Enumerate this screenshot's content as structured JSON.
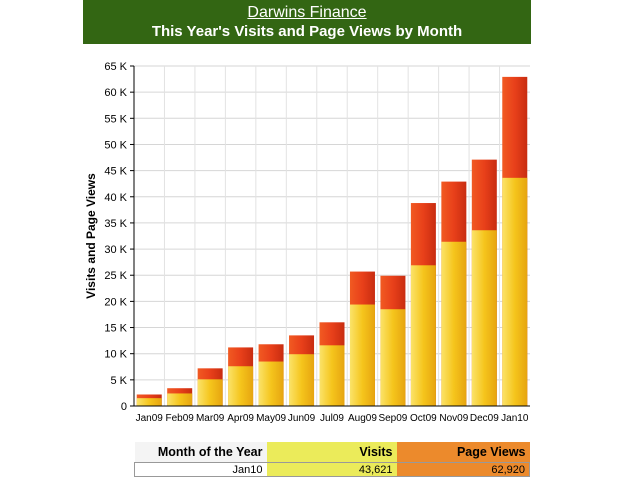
{
  "header": {
    "site_link": "Darwins Finance",
    "title": "This Year's Visits and Page Views by Month"
  },
  "chart_data": {
    "type": "bar",
    "stacked": true,
    "title": "This Year's Visits and Page Views by Month",
    "ylabel": "Visits and Page Views",
    "xlabel": "",
    "ylim": [
      0,
      65000
    ],
    "yticks": [
      "0",
      "5 K",
      "10 K",
      "15 K",
      "20 K",
      "25 K",
      "30 K",
      "35 K",
      "40 K",
      "45 K",
      "50 K",
      "55 K",
      "60 K",
      "65 K"
    ],
    "grid": true,
    "categories": [
      "Jan09",
      "Feb09",
      "Mar09",
      "Apr09",
      "May09",
      "Jun09",
      "Jul09",
      "Aug09",
      "Sep09",
      "Oct09",
      "Nov09",
      "Dec09",
      "Jan10"
    ],
    "series": [
      {
        "name": "Visits",
        "color": "#f2c21a",
        "values": [
          1500,
          2400,
          5100,
          7600,
          8500,
          9900,
          11600,
          19400,
          18500,
          26900,
          31400,
          33600,
          43621
        ]
      },
      {
        "name": "Page Views",
        "color": "#e8401a",
        "totals": [
          2200,
          3400,
          7200,
          11200,
          11800,
          13500,
          16000,
          25700,
          24900,
          38800,
          42900,
          47100,
          62920
        ]
      }
    ]
  },
  "table": {
    "headers": [
      "Month of the Year",
      "Visits",
      "Page Views"
    ],
    "rows": [
      [
        "Jan10",
        "43,621",
        "62,920"
      ]
    ]
  },
  "colors": {
    "header_bg": "#336613",
    "visits": "#f2c21a",
    "page_views": "#e8401a"
  }
}
